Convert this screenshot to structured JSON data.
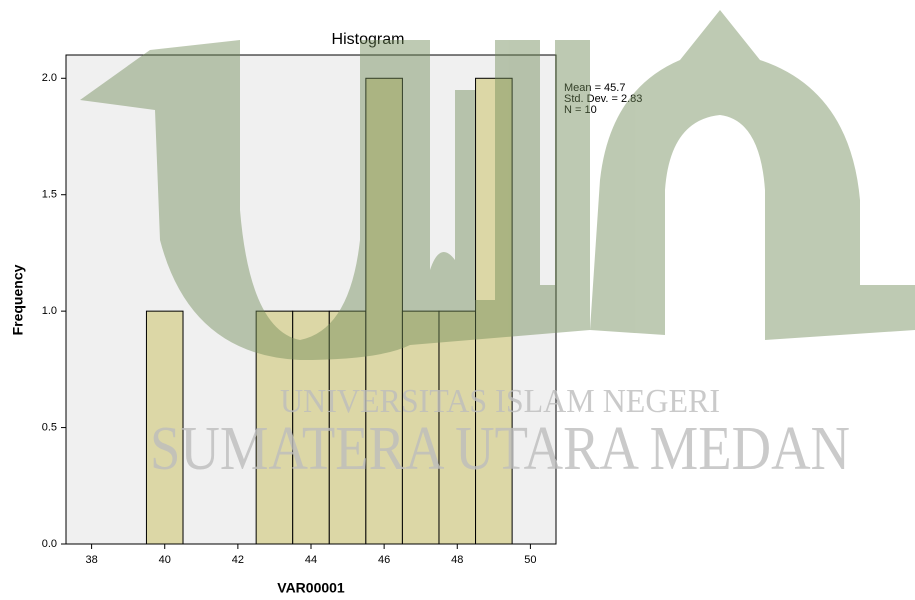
{
  "chart_data": {
    "type": "histogram",
    "title": "Histogram",
    "x_label": "VAR00001",
    "y_label": "Frequency",
    "bins": [
      39.5,
      40.5,
      41.5,
      42.5,
      43.5,
      44.5,
      45.5,
      46.5,
      47.5,
      48.5,
      49.5
    ],
    "values": [
      1,
      0,
      0,
      1,
      1,
      1,
      2,
      1,
      1,
      2
    ],
    "color": "#dcd7a6",
    "xlim": [
      37.3,
      50.7
    ],
    "xticks": [
      38,
      40,
      42,
      44,
      46,
      48,
      50
    ],
    "ylim": [
      0,
      2.1
    ],
    "yticks": [
      {
        "value": 0,
        "label": "0.0"
      },
      {
        "value": 0.5,
        "label": "0.5"
      },
      {
        "value": 1,
        "label": "1.0"
      },
      {
        "value": 1.5,
        "label": "1.5"
      },
      {
        "value": 2,
        "label": "2.0"
      }
    ],
    "annotations": [
      "Mean = 45.7",
      "Std. Dev. = 2.83",
      "N = 10"
    ],
    "watermark": [
      "UNIVERSITAS ISLAM NEGERI",
      "SUMATERA UTARA MEDAN"
    ]
  }
}
